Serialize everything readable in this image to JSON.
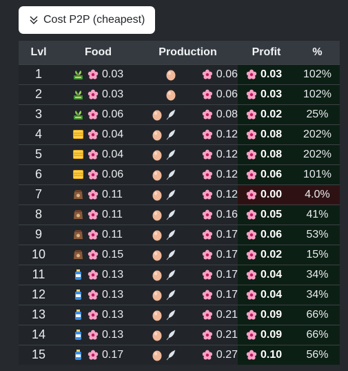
{
  "dropdown": {
    "label": "Cost P2P (cheapest)"
  },
  "table": {
    "headers": {
      "lvl": "Lvl",
      "food": "Food",
      "production": "Production",
      "profit": "Profit",
      "pct": "%"
    },
    "rows": [
      {
        "lvl": "1",
        "food_icon": "sprout-icon",
        "food": "0.03",
        "prod_icons": [
          "egg-icon"
        ],
        "prod": "0.06",
        "profit": "0.03",
        "pct": "102%",
        "neg": false
      },
      {
        "lvl": "2",
        "food_icon": "sprout-icon",
        "food": "0.03",
        "prod_icons": [
          "egg-icon"
        ],
        "prod": "0.06",
        "profit": "0.03",
        "pct": "102%",
        "neg": false
      },
      {
        "lvl": "3",
        "food_icon": "sprout-icon",
        "food": "0.06",
        "prod_icons": [
          "egg-icon",
          "feather-icon"
        ],
        "prod": "0.08",
        "profit": "0.02",
        "pct": "25%",
        "neg": false
      },
      {
        "lvl": "4",
        "food_icon": "corn-icon",
        "food": "0.04",
        "prod_icons": [
          "egg-icon",
          "feather-icon"
        ],
        "prod": "0.12",
        "profit": "0.08",
        "pct": "202%",
        "neg": false
      },
      {
        "lvl": "5",
        "food_icon": "corn-icon",
        "food": "0.04",
        "prod_icons": [
          "egg-icon",
          "feather-icon"
        ],
        "prod": "0.12",
        "profit": "0.08",
        "pct": "202%",
        "neg": false
      },
      {
        "lvl": "6",
        "food_icon": "corn-icon",
        "food": "0.06",
        "prod_icons": [
          "egg-icon",
          "feather-icon"
        ],
        "prod": "0.12",
        "profit": "0.06",
        "pct": "101%",
        "neg": false
      },
      {
        "lvl": "7",
        "food_icon": "feed-sack-icon",
        "food": "0.11",
        "prod_icons": [
          "egg-icon",
          "feather-icon"
        ],
        "prod": "0.12",
        "profit": "0.00",
        "pct": "4.0%",
        "neg": true
      },
      {
        "lvl": "8",
        "food_icon": "feed-sack-icon",
        "food": "0.11",
        "prod_icons": [
          "egg-icon",
          "feather-icon"
        ],
        "prod": "0.16",
        "profit": "0.05",
        "pct": "41%",
        "neg": false
      },
      {
        "lvl": "9",
        "food_icon": "feed-sack-icon",
        "food": "0.11",
        "prod_icons": [
          "egg-icon",
          "feather-icon"
        ],
        "prod": "0.17",
        "profit": "0.06",
        "pct": "53%",
        "neg": false
      },
      {
        "lvl": "10",
        "food_icon": "feed-sack-icon",
        "food": "0.15",
        "prod_icons": [
          "egg-icon",
          "feather-icon"
        ],
        "prod": "0.17",
        "profit": "0.02",
        "pct": "15%",
        "neg": false
      },
      {
        "lvl": "11",
        "food_icon": "potion-bottle-icon",
        "food": "0.13",
        "prod_icons": [
          "egg-icon",
          "feather-icon"
        ],
        "prod": "0.17",
        "profit": "0.04",
        "pct": "34%",
        "neg": false
      },
      {
        "lvl": "12",
        "food_icon": "potion-bottle-icon",
        "food": "0.13",
        "prod_icons": [
          "egg-icon",
          "feather-icon"
        ],
        "prod": "0.17",
        "profit": "0.04",
        "pct": "34%",
        "neg": false
      },
      {
        "lvl": "13",
        "food_icon": "potion-bottle-icon",
        "food": "0.13",
        "prod_icons": [
          "egg-icon",
          "feather-icon"
        ],
        "prod": "0.21",
        "profit": "0.09",
        "pct": "66%",
        "neg": false
      },
      {
        "lvl": "14",
        "food_icon": "potion-bottle-icon",
        "food": "0.13",
        "prod_icons": [
          "egg-icon",
          "feather-icon"
        ],
        "prod": "0.21",
        "profit": "0.09",
        "pct": "66%",
        "neg": false
      },
      {
        "lvl": "15",
        "food_icon": "potion-bottle-icon",
        "food": "0.17",
        "prod_icons": [
          "egg-icon",
          "feather-icon"
        ],
        "prod": "0.27",
        "profit": "0.10",
        "pct": "56%",
        "neg": false
      }
    ]
  },
  "colors": {
    "profit_bg": "#0c1f14",
    "loss_bg": "#2e1213",
    "flower": "#f7a1c4"
  }
}
